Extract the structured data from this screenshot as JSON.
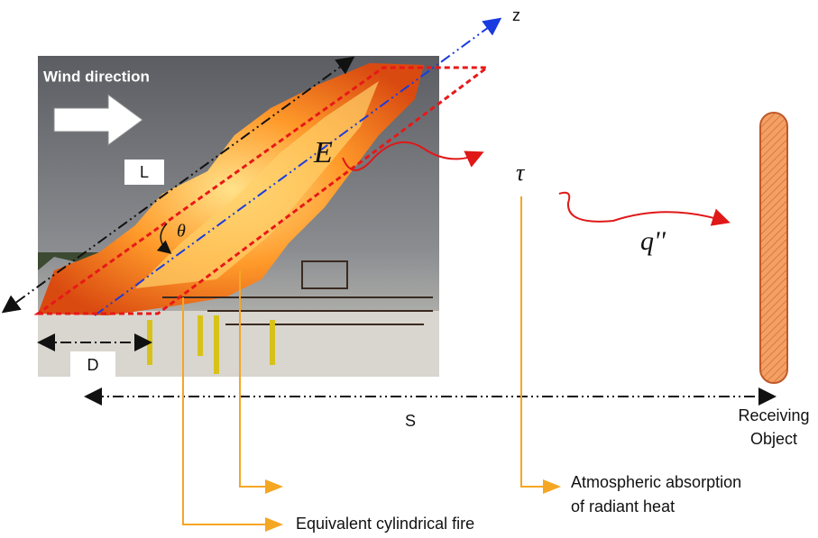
{
  "labels": {
    "z": "z",
    "wind": "Wind direction",
    "L": "L",
    "E": "E",
    "theta": "θ",
    "tau": "τ",
    "q": "q''",
    "D": "D",
    "S": "S"
  },
  "receiving_object": [
    "Receiving",
    "Object"
  ],
  "callouts": {
    "atmospheric": [
      "Atmospheric absorption",
      "of radiant heat"
    ],
    "equivalent": "Equivalent cylindrical fire"
  }
}
